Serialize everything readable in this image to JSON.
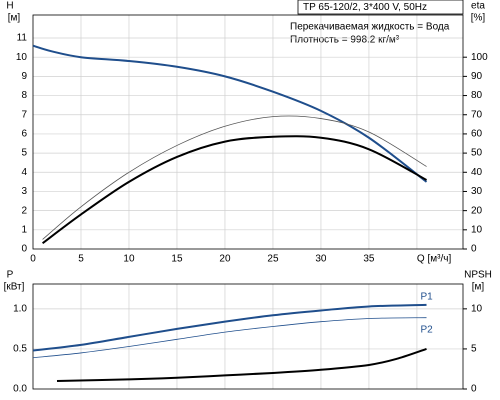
{
  "chart_data": [
    {
      "type": "line",
      "title": "TP 65-120/2, 3*400 V, 50Hz",
      "annotations": [
        "Перекачиваемая жидкость = Вода",
        "Плотность = 998.2 кг/м³"
      ],
      "ylabel": [
        "H",
        "[м]"
      ],
      "y2label": [
        "eta",
        "[%]"
      ],
      "xlim": [
        0,
        44.8
      ],
      "xticks": [
        0,
        5,
        10,
        15,
        20,
        25,
        30,
        35,
        {
          "value": 40,
          "label": "Q [м³/ч]"
        }
      ],
      "ylim": [
        0,
        12.2
      ],
      "yticks": [
        0,
        1,
        2,
        3,
        4,
        5,
        6,
        7,
        8,
        9,
        10,
        11
      ],
      "y2lim": [
        0,
        122
      ],
      "y2ticks": [
        0,
        10,
        20,
        30,
        40,
        50,
        60,
        70,
        80,
        90,
        100
      ],
      "grid": true,
      "series": [
        {
          "color": "#1f4e8c",
          "width": 2,
          "x": [
            0,
            2,
            5,
            10,
            15,
            20,
            25,
            30,
            35,
            41
          ],
          "values": [
            10.6,
            10.3,
            10.0,
            9.8,
            9.5,
            9.0,
            8.2,
            7.2,
            5.8,
            3.5
          ]
        },
        {
          "color": "#555555",
          "width": 0.8,
          "axis": "y2",
          "x": [
            1,
            5,
            10,
            15,
            20,
            25,
            30,
            35,
            41
          ],
          "values": [
            5,
            22,
            40,
            54,
            64,
            69,
            68,
            61,
            43
          ]
        },
        {
          "color": "#000000",
          "width": 2,
          "axis": "y2",
          "x": [
            1,
            5,
            10,
            15,
            20,
            25,
            30,
            35,
            41
          ],
          "values": [
            3,
            18,
            35,
            48,
            56,
            58.5,
            58,
            52,
            36
          ]
        }
      ]
    },
    {
      "type": "line",
      "ylabel": [
        "P",
        "[кВт]"
      ],
      "y2label": [
        "NPSH",
        "[м]"
      ],
      "xlim": [
        0,
        44.8
      ],
      "ylim": [
        0,
        1.31
      ],
      "yticks": [
        {
          "value": 0,
          "label": "0.0"
        },
        0.5,
        {
          "value": 1,
          "label": "1.0"
        }
      ],
      "y2lim": [
        0,
        13.1
      ],
      "y2ticks": [
        0,
        5,
        10
      ],
      "grid": true,
      "series": [
        {
          "name": "P1",
          "color": "#1f4e8c",
          "width": 2,
          "x": [
            0,
            5,
            10,
            15,
            20,
            25,
            30,
            35,
            41
          ],
          "values": [
            0.48,
            0.55,
            0.65,
            0.75,
            0.84,
            0.92,
            0.98,
            1.03,
            1.05
          ]
        },
        {
          "name": "P2",
          "color": "#1f4e8c",
          "width": 0.8,
          "x": [
            0,
            5,
            10,
            15,
            20,
            25,
            30,
            35,
            41
          ],
          "values": [
            0.39,
            0.45,
            0.53,
            0.62,
            0.71,
            0.78,
            0.84,
            0.88,
            0.89
          ]
        },
        {
          "color": "#000000",
          "width": 2,
          "axis": "y2",
          "x": [
            2.5,
            10,
            15,
            20,
            25,
            30,
            35,
            38,
            41
          ],
          "values": [
            1.0,
            1.2,
            1.4,
            1.7,
            2.0,
            2.4,
            3.0,
            3.8,
            5.0
          ]
        }
      ]
    }
  ]
}
